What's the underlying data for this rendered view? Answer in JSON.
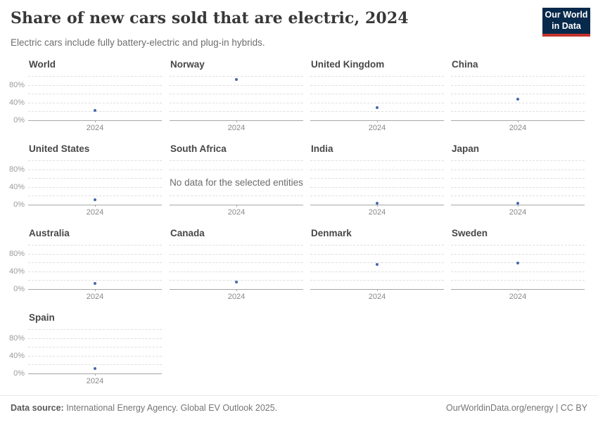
{
  "header": {
    "title": "Share of new cars sold that are electric, 2024",
    "subtitle": "Electric cars include fully battery-electric and plug-in hybrids.",
    "logo_line1": "Our World",
    "logo_line2": "in Data",
    "logo_bg": "#07294b",
    "logo_red": "#c5332c"
  },
  "chart_data": {
    "type": "scatter",
    "x": [
      "2024"
    ],
    "x_tick_label": "2024",
    "unit": "%",
    "ylim": [
      0,
      100
    ],
    "gridlines_pct": [
      0,
      20,
      40,
      60,
      80,
      100
    ],
    "labeled_yticks": [
      {
        "value": 80,
        "label": "80%"
      },
      {
        "value": 40,
        "label": "40%"
      },
      {
        "value": 0,
        "label": "0%"
      }
    ],
    "no_data_text": "No data for the selected entities",
    "dot_color": "#4668ab",
    "grid_color": "#dedede",
    "axis_color": "#a6a6a6",
    "series": [
      {
        "name": "World",
        "value": 22
      },
      {
        "name": "Norway",
        "value": 92
      },
      {
        "name": "United Kingdom",
        "value": 28
      },
      {
        "name": "China",
        "value": 48
      },
      {
        "name": "United States",
        "value": 10
      },
      {
        "name": "South Africa",
        "value": null
      },
      {
        "name": "India",
        "value": 2
      },
      {
        "name": "Japan",
        "value": 3
      },
      {
        "name": "Australia",
        "value": 12
      },
      {
        "name": "Canada",
        "value": 15
      },
      {
        "name": "Denmark",
        "value": 56
      },
      {
        "name": "Sweden",
        "value": 58
      },
      {
        "name": "Spain",
        "value": 11
      }
    ]
  },
  "footer": {
    "source_label": "Data source:",
    "source_text": " International Energy Agency. Global EV Outlook 2025.",
    "right_text": "OurWorldinData.org/energy | CC BY"
  }
}
